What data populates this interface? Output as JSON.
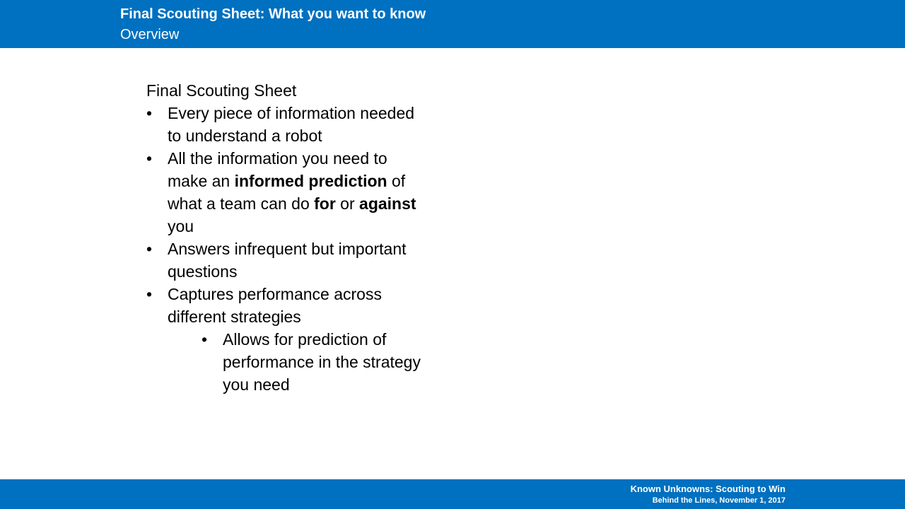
{
  "header": {
    "title": "Final Scouting Sheet: What you want to know",
    "subtitle": "Overview"
  },
  "content": {
    "heading": "Final Scouting Sheet",
    "bullet_glyph": "•",
    "bullets": [
      {
        "text": "Every piece of information needed to understand a robot"
      },
      {
        "t1": "All the information you need to make an ",
        "b1": "informed prediction",
        "t2": " of what a team can do ",
        "b2": "for",
        "t3": " or ",
        "b3": "against",
        "t4": " you"
      },
      {
        "text": "Answers infrequent but important questions"
      },
      {
        "text": "Captures performance across different strategies"
      }
    ],
    "sub_bullets": [
      {
        "text": "Allows for prediction of performance in the strategy you need"
      }
    ]
  },
  "footer": {
    "line1": "Known Unknowns: Scouting to Win",
    "line2": "Behind the Lines, November 1, 2017"
  },
  "colors": {
    "accent": "#0070c0",
    "background": "#ffffff",
    "text": "#000000"
  }
}
